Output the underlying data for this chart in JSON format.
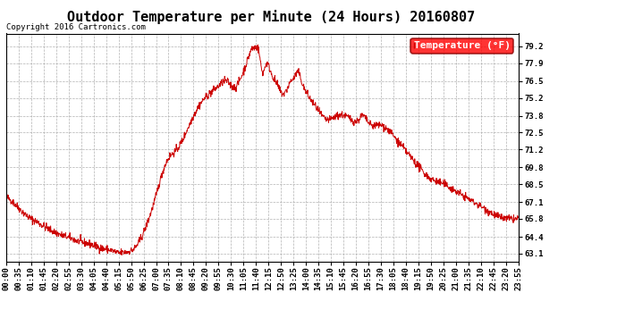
{
  "title": "Outdoor Temperature per Minute (24 Hours) 20160807",
  "copyright_text": "Copyright 2016 Cartronics.com",
  "legend_label": "Temperature (°F)",
  "line_color": "#cc0000",
  "bg_color": "#ffffff",
  "grid_color": "#aaaaaa",
  "yticks": [
    63.1,
    64.4,
    65.8,
    67.1,
    68.5,
    69.8,
    71.2,
    72.5,
    73.8,
    75.2,
    76.5,
    77.9,
    79.2
  ],
  "ylim": [
    62.5,
    80.2
  ],
  "xtick_labels": [
    "00:00",
    "00:35",
    "01:10",
    "01:45",
    "02:20",
    "02:55",
    "03:30",
    "04:05",
    "04:40",
    "05:15",
    "05:50",
    "06:25",
    "07:00",
    "07:35",
    "08:10",
    "08:45",
    "09:20",
    "09:55",
    "10:30",
    "11:05",
    "11:40",
    "12:15",
    "12:50",
    "13:25",
    "14:00",
    "14:35",
    "15:10",
    "15:45",
    "16:20",
    "16:55",
    "17:30",
    "18:05",
    "18:40",
    "19:15",
    "19:50",
    "20:25",
    "21:00",
    "21:35",
    "22:10",
    "22:45",
    "23:20",
    "23:55"
  ],
  "title_fontsize": 11,
  "axis_fontsize": 6.5,
  "legend_fontsize": 8,
  "copyright_fontsize": 6.5
}
